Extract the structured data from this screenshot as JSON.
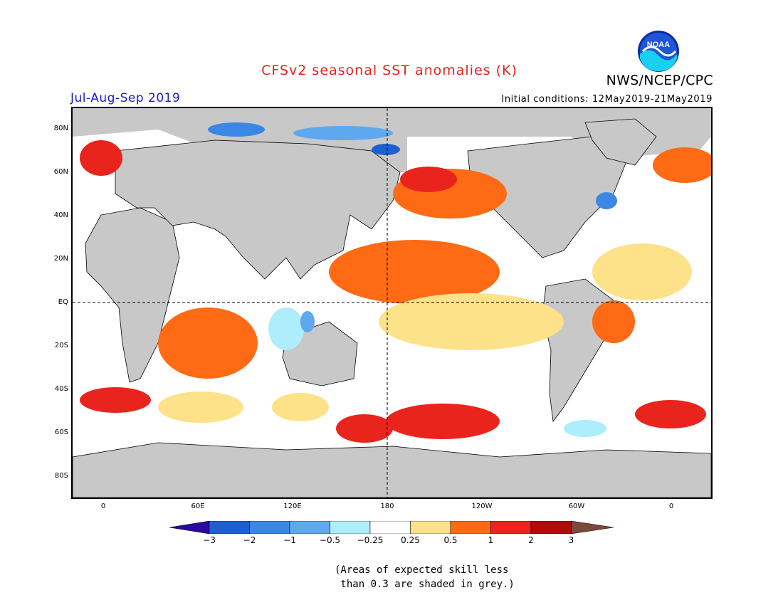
{
  "header": {
    "title": "CFSv2 seasonal SST anomalies (K)",
    "season": "Jul-Aug-Sep 2019",
    "initial_conditions": "Initial conditions: 12May2019-21May2019",
    "agency": "NWS/NCEP/CPC",
    "logo_text": "NOAA"
  },
  "map": {
    "projection": "cylindrical",
    "y_axis_labels": [
      "80N",
      "60N",
      "40N",
      "20N",
      "EQ",
      "20S",
      "40S",
      "60S",
      "80S"
    ],
    "x_axis_labels": [
      "0",
      "60E",
      "120E",
      "180",
      "120W",
      "60W",
      "0"
    ],
    "land_color": "#c8c8c8",
    "grey_meaning": "low skill"
  },
  "colorbar": {
    "tick_labels": [
      "-3",
      "-2",
      "-1",
      "-0.5",
      "-0.25",
      "0.25",
      "0.5",
      "1",
      "2",
      "3"
    ],
    "colors": [
      "#2a0aa0",
      "#1e5fd0",
      "#3a87e6",
      "#5ea8ee",
      "#aeeefc",
      "#ffffff",
      "#fde28a",
      "#ff6a14",
      "#e8241c",
      "#b00a0a",
      "#7a4a3a"
    ]
  },
  "footnote": {
    "line1": "(Areas of expected skill less",
    "line2": " than 0.3 are shaded in grey.)"
  }
}
